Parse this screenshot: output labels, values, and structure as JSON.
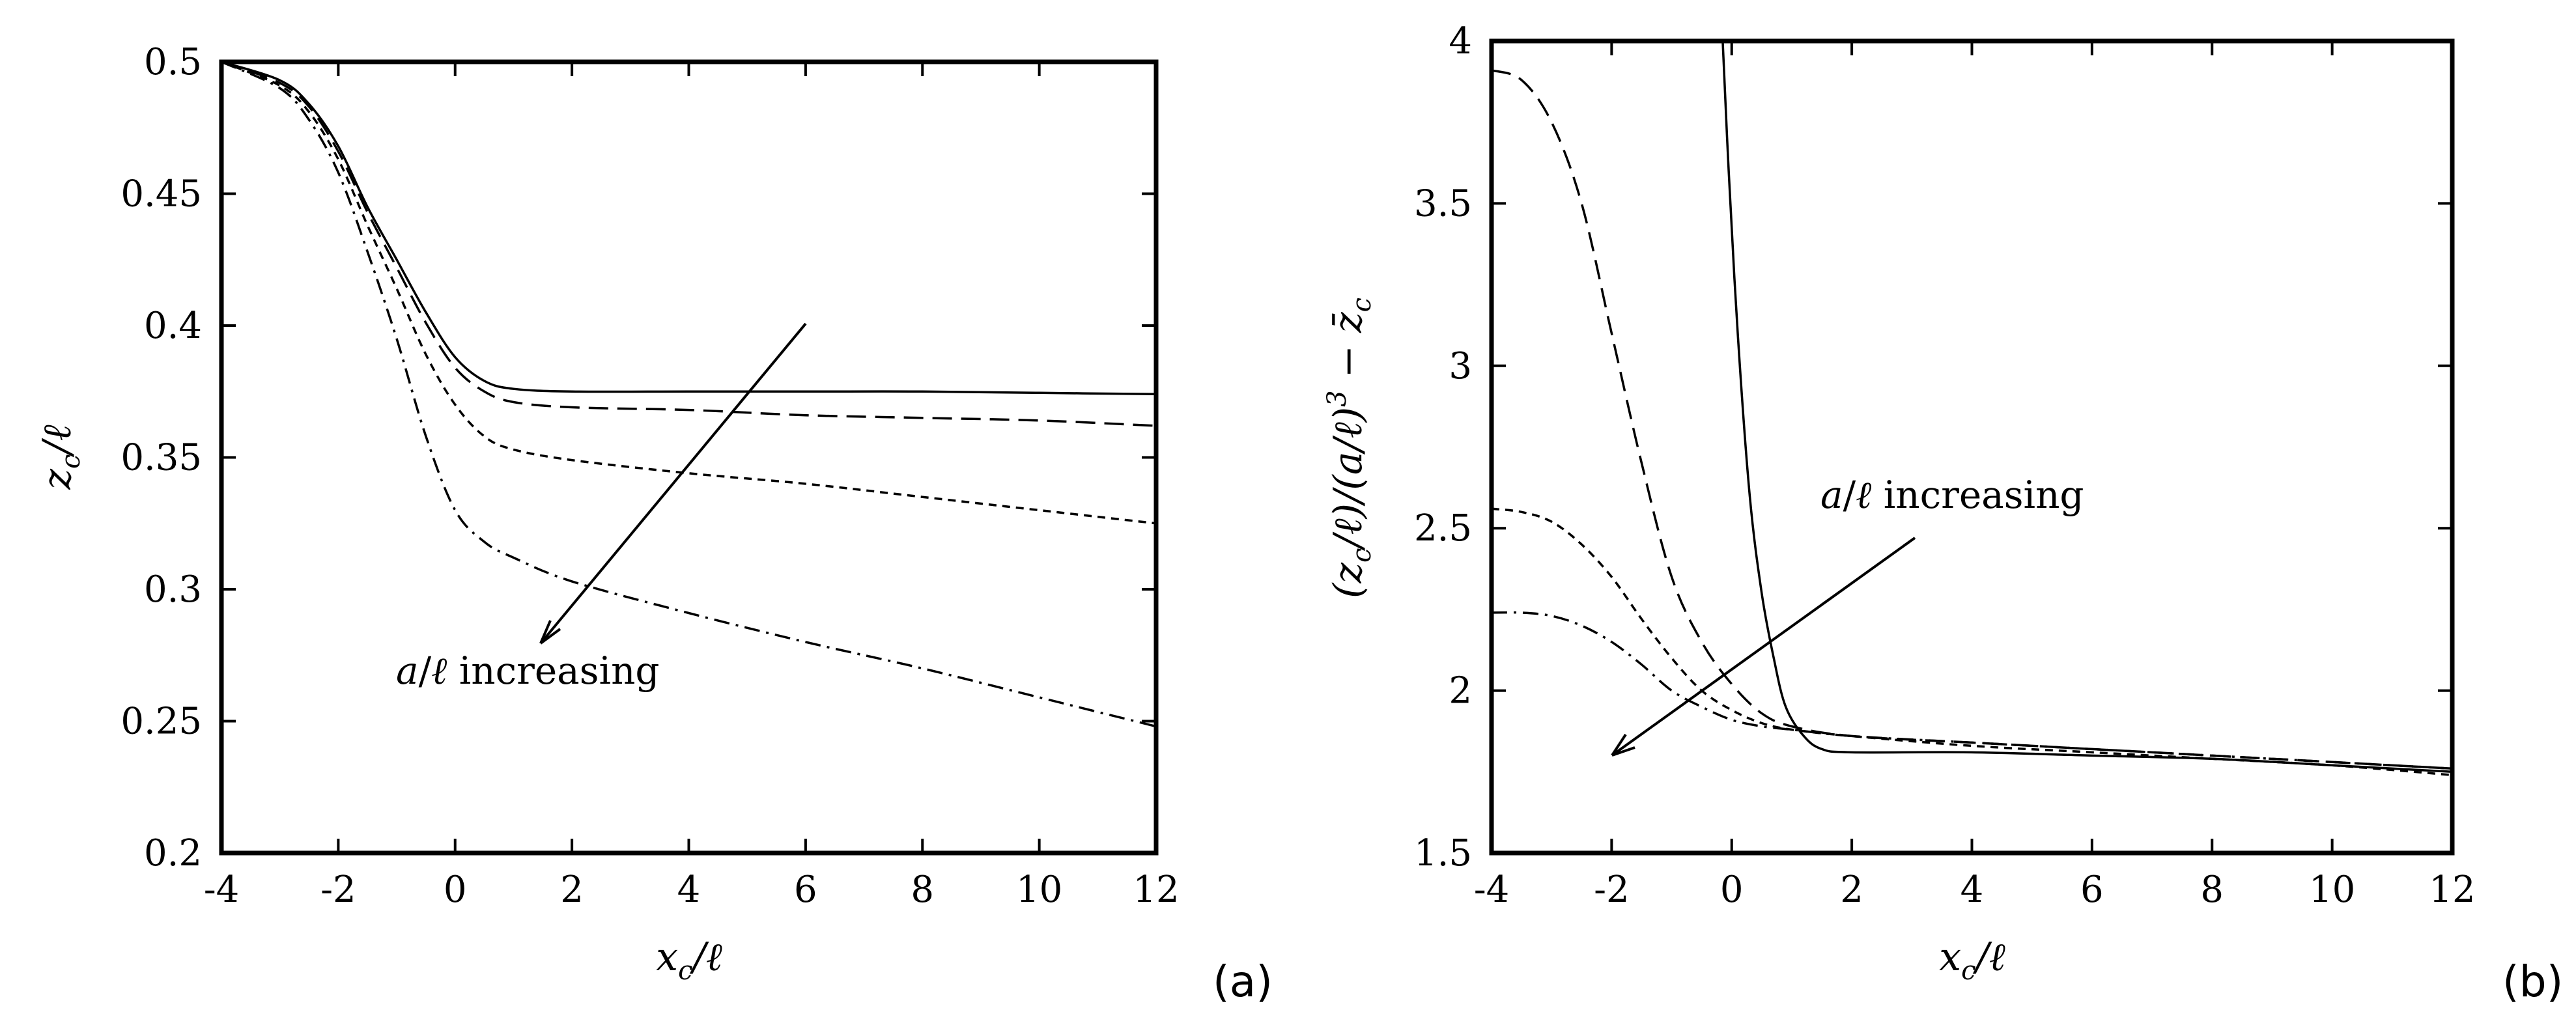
{
  "chart_data": [
    {
      "type": "line",
      "panel_label": "(a)",
      "xlabel": "x_c/ℓ",
      "ylabel": "z_c/ℓ",
      "xlim": [
        -4,
        12
      ],
      "ylim": [
        0.2,
        0.5
      ],
      "xticks": [
        -4,
        -2,
        0,
        2,
        4,
        6,
        8,
        10,
        12
      ],
      "xtick_labels": [
        "-4",
        "-2",
        "0",
        "2",
        "4",
        "6",
        "8",
        "10",
        "12"
      ],
      "yticks": [
        0.2,
        0.25,
        0.3,
        0.35,
        0.4,
        0.45,
        0.5
      ],
      "ytick_labels": [
        "0.2",
        "0.25",
        "0.3",
        "0.35",
        "0.4",
        "0.45",
        "0.5"
      ],
      "annotation": {
        "text": "a/ℓ increasing",
        "arrow_from": [
          6,
          0.4
        ],
        "arrow_to": [
          1.4,
          0.28
        ]
      },
      "series": [
        {
          "name": "solid",
          "style": "solid",
          "x": [
            -4,
            -3,
            -2.5,
            -2,
            -1.5,
            -1,
            -0.5,
            0,
            0.5,
            1,
            2,
            4,
            6,
            8,
            10,
            12
          ],
          "y": [
            0.5,
            0.493,
            0.484,
            0.468,
            0.445,
            0.425,
            0.405,
            0.388,
            0.379,
            0.376,
            0.375,
            0.375,
            0.375,
            0.375,
            0.3745,
            0.374
          ]
        },
        {
          "name": "long-dash",
          "style": "long-dash",
          "x": [
            -4,
            -3,
            -2.5,
            -2,
            -1.5,
            -1,
            -0.5,
            0,
            0.5,
            1,
            2,
            4,
            6,
            8,
            10,
            12
          ],
          "y": [
            0.5,
            0.492,
            0.483,
            0.466,
            0.443,
            0.422,
            0.401,
            0.384,
            0.375,
            0.371,
            0.369,
            0.368,
            0.366,
            0.365,
            0.364,
            0.362
          ]
        },
        {
          "name": "short-dash",
          "style": "short-dash",
          "x": [
            -4,
            -3,
            -2.5,
            -2,
            -1.5,
            -1,
            -0.5,
            0,
            0.5,
            1,
            2,
            4,
            6,
            8,
            10,
            12
          ],
          "y": [
            0.5,
            0.491,
            0.481,
            0.463,
            0.438,
            0.414,
            0.389,
            0.37,
            0.358,
            0.353,
            0.349,
            0.344,
            0.34,
            0.335,
            0.33,
            0.325
          ]
        },
        {
          "name": "dash-dot",
          "style": "dash-dot",
          "x": [
            -4,
            -3,
            -2.5,
            -2,
            -1.5,
            -1,
            -0.5,
            0,
            0.5,
            1,
            2,
            4,
            6,
            8,
            10,
            12
          ],
          "y": [
            0.5,
            0.49,
            0.478,
            0.458,
            0.428,
            0.395,
            0.358,
            0.33,
            0.318,
            0.312,
            0.303,
            0.291,
            0.28,
            0.27,
            0.259,
            0.248
          ]
        }
      ]
    },
    {
      "type": "line",
      "panel_label": "(b)",
      "xlabel": "x_c/ℓ",
      "ylabel": "(z_c/ℓ)/(a/ℓ)^3 − z̄_c",
      "xlim": [
        -4,
        12
      ],
      "ylim": [
        1.5,
        4
      ],
      "xticks": [
        -4,
        -2,
        0,
        2,
        4,
        6,
        8,
        10,
        12
      ],
      "xtick_labels": [
        "-4",
        "-2",
        "0",
        "2",
        "4",
        "6",
        "8",
        "10",
        "12"
      ],
      "yticks": [
        1.5,
        2,
        2.5,
        3,
        3.5,
        4
      ],
      "ytick_labels": [
        "1.5",
        "2",
        "2.5",
        "3",
        "3.5",
        "4"
      ],
      "annotation": {
        "text": "a/ℓ increasing",
        "arrow_from": [
          3.6,
          2.43
        ],
        "arrow_to": [
          -2,
          1.8
        ]
      },
      "series": [
        {
          "name": "solid",
          "style": "solid",
          "x": [
            -0.15,
            -0.05,
            0.1,
            0.3,
            0.5,
            0.7,
            0.9,
            1.2,
            1.5,
            2,
            4,
            6,
            8,
            10,
            12
          ],
          "y": [
            4.0,
            3.6,
            3.1,
            2.6,
            2.3,
            2.1,
            1.95,
            1.86,
            1.82,
            1.81,
            1.81,
            1.8,
            1.79,
            1.77,
            1.75
          ]
        },
        {
          "name": "long-dash",
          "style": "long-dash",
          "x": [
            -4,
            -3.5,
            -3,
            -2.5,
            -2,
            -1.5,
            -1,
            -0.5,
            0,
            0.5,
            1,
            2,
            4,
            6,
            8,
            10,
            12
          ],
          "y": [
            3.91,
            3.88,
            3.75,
            3.5,
            3.1,
            2.7,
            2.35,
            2.15,
            2.02,
            1.93,
            1.89,
            1.86,
            1.84,
            1.82,
            1.8,
            1.78,
            1.76
          ]
        },
        {
          "name": "short-dash",
          "style": "short-dash",
          "x": [
            -4,
            -3.5,
            -3,
            -2.5,
            -2,
            -1.5,
            -1,
            -0.5,
            0,
            0.5,
            1,
            2,
            4,
            6,
            8,
            10,
            12
          ],
          "y": [
            2.56,
            2.55,
            2.52,
            2.45,
            2.35,
            2.22,
            2.1,
            2.0,
            1.94,
            1.9,
            1.88,
            1.86,
            1.83,
            1.81,
            1.79,
            1.77,
            1.74
          ]
        },
        {
          "name": "dash-dot",
          "style": "dash-dot",
          "x": [
            -4,
            -3.5,
            -3,
            -2.5,
            -2,
            -1.5,
            -1,
            -0.5,
            0,
            0.5,
            1,
            2,
            4,
            6,
            8,
            10,
            12
          ],
          "y": [
            2.24,
            2.24,
            2.23,
            2.2,
            2.15,
            2.08,
            2.0,
            1.95,
            1.91,
            1.89,
            1.88,
            1.86,
            1.84,
            1.82,
            1.8,
            1.78,
            1.76
          ]
        }
      ]
    }
  ]
}
